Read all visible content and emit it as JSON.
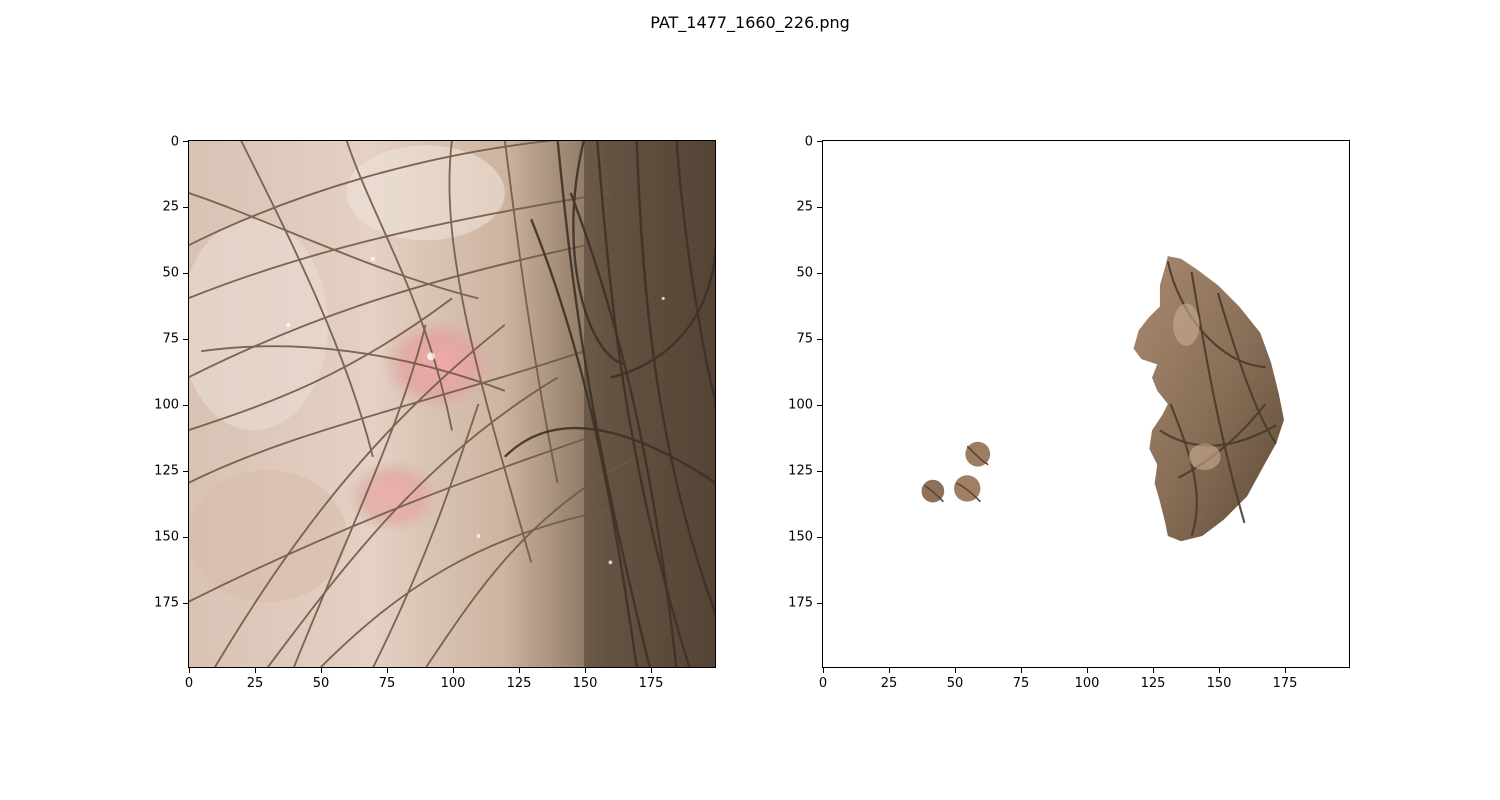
{
  "figure": {
    "title": "PAT_1477_1660_226.png"
  },
  "panels": [
    {
      "id": "original",
      "content": "scalp dermoscopy with hair strands and pinkish lesion",
      "xlim": [
        0,
        200
      ],
      "ylim": [
        200,
        0
      ],
      "xticks": [
        "0",
        "25",
        "50",
        "75",
        "100",
        "125",
        "150",
        "175"
      ],
      "yticks": [
        "0",
        "25",
        "50",
        "75",
        "100",
        "125",
        "150",
        "175"
      ]
    },
    {
      "id": "segmented",
      "content": "masked lesion regions on white background",
      "xlim": [
        0,
        200
      ],
      "ylim": [
        200,
        0
      ],
      "xticks": [
        "0",
        "25",
        "50",
        "75",
        "100",
        "125",
        "150",
        "175"
      ],
      "yticks": [
        "0",
        "25",
        "50",
        "75",
        "100",
        "125",
        "150",
        "175"
      ]
    }
  ],
  "colors": {
    "skin": "#d8c0b0",
    "hair": "#6b5540",
    "lesion_pink": "#e8a0a0",
    "mask_background": "#ffffff"
  }
}
